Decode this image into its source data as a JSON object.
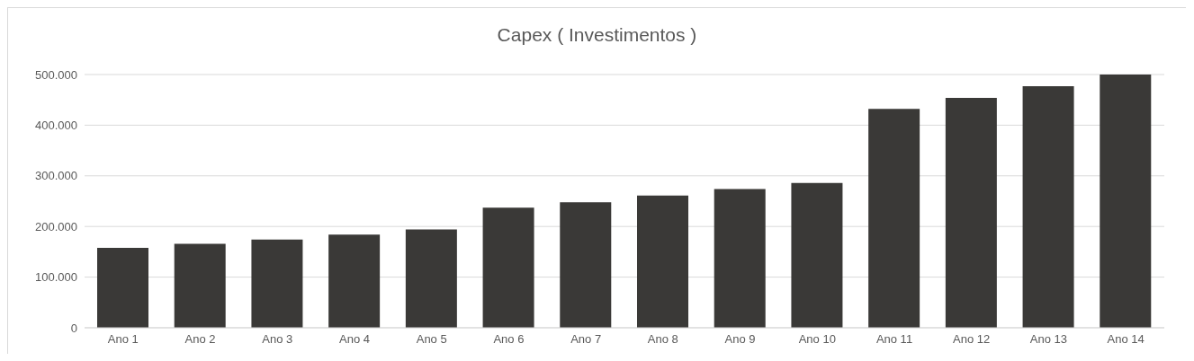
{
  "chart_data": {
    "type": "bar",
    "title": "Capex ( Investimentos )",
    "categories": [
      "Ano 1",
      "Ano 2",
      "Ano 3",
      "Ano 4",
      "Ano 5",
      "Ano 6",
      "Ano 7",
      "Ano 8",
      "Ano 9",
      "Ano 10",
      "Ano 11",
      "Ano 12",
      "Ano 13",
      "Ano 14"
    ],
    "values": [
      158000,
      166000,
      174000,
      184000,
      194000,
      237000,
      248000,
      261000,
      274000,
      286000,
      432000,
      454000,
      477000,
      500000
    ],
    "color": "#3a3937",
    "ylim": [
      0,
      500000
    ],
    "yticks": [
      {
        "value": 0,
        "label": "0"
      },
      {
        "value": 100000,
        "label": "100.000"
      },
      {
        "value": 200000,
        "label": "200.000"
      },
      {
        "value": 300000,
        "label": "300.000"
      },
      {
        "value": 400000,
        "label": "400.000"
      },
      {
        "value": 500000,
        "label": "500.000"
      }
    ],
    "grid": "y",
    "legend": false
  }
}
